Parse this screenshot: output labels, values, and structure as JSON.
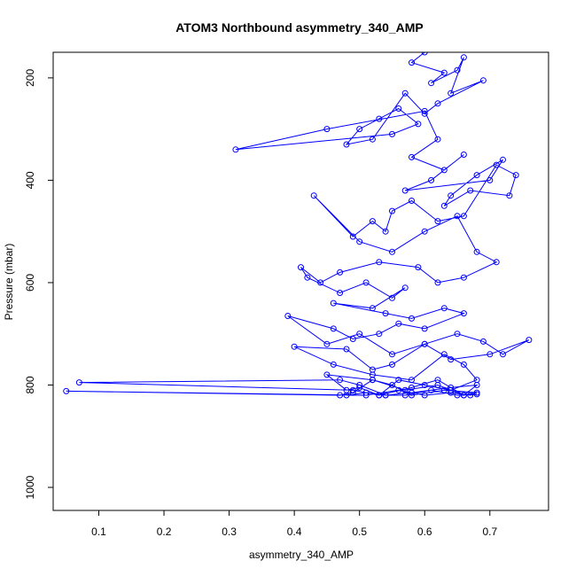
{
  "chart_data": {
    "type": "line",
    "title": "ATOM3 Northbound asymmetry_340_AMP",
    "xlabel": "asymmetry_340_AMP",
    "ylabel": "Pressure (mbar)",
    "xlim": [
      0.03,
      0.79
    ],
    "ylim": [
      1045,
      150
    ],
    "y_reversed": true,
    "x_ticks": [
      0.1,
      0.2,
      0.3,
      0.4,
      0.5,
      0.6,
      0.7
    ],
    "y_ticks": [
      200,
      400,
      600,
      800,
      1000
    ],
    "grid": false,
    "legend": "none",
    "colors": {
      "series": "#0000ff",
      "axis": "#000000"
    },
    "series": [
      {
        "markers": "open-circle",
        "x": [
          0.6,
          0.58,
          0.63,
          0.61,
          0.65,
          0.66,
          0.64,
          0.69,
          0.62,
          0.6,
          0.57,
          0.52,
          0.48,
          0.5,
          0.53,
          0.56,
          0.59,
          0.55,
          0.31,
          0.45,
          0.6,
          0.62,
          0.58,
          0.63,
          0.66,
          0.61,
          0.57,
          0.7,
          0.72,
          0.68,
          0.64,
          0.63,
          0.67,
          0.73,
          0.74,
          0.71,
          0.66,
          0.62,
          0.58,
          0.55,
          0.54,
          0.52,
          0.49,
          0.43,
          0.5,
          0.55,
          0.6,
          0.65,
          0.68,
          0.71,
          0.66,
          0.62,
          0.59,
          0.53,
          0.47,
          0.44,
          0.41,
          0.42,
          0.47,
          0.51,
          0.55,
          0.57,
          0.52,
          0.46,
          0.54,
          0.58,
          0.63,
          0.66,
          0.6,
          0.56,
          0.53,
          0.49,
          0.46,
          0.39,
          0.45,
          0.5,
          0.55,
          0.6,
          0.65,
          0.69,
          0.72,
          0.76,
          0.7,
          0.64,
          0.6,
          0.55,
          0.52,
          0.48,
          0.4,
          0.46,
          0.52,
          0.58,
          0.63,
          0.66,
          0.68,
          0.64,
          0.6,
          0.56,
          0.53,
          0.5,
          0.48,
          0.45,
          0.52,
          0.57,
          0.62,
          0.66,
          0.68,
          0.64,
          0.58,
          0.54,
          0.5,
          0.47,
          0.07,
          0.49,
          0.53,
          0.58,
          0.62,
          0.66,
          0.68,
          0.63,
          0.58,
          0.55,
          0.52,
          0.49,
          0.47,
          0.05,
          0.51,
          0.56,
          0.6,
          0.64,
          0.67,
          0.68,
          0.65,
          0.61,
          0.57,
          0.54,
          0.51,
          0.48
        ],
        "y": [
          150,
          170,
          190,
          210,
          185,
          160,
          230,
          205,
          250,
          270,
          230,
          320,
          330,
          300,
          280,
          260,
          290,
          310,
          340,
          300,
          265,
          320,
          355,
          380,
          350,
          400,
          420,
          400,
          360,
          390,
          430,
          450,
          420,
          430,
          390,
          370,
          470,
          480,
          440,
          460,
          500,
          480,
          510,
          430,
          520,
          540,
          500,
          470,
          540,
          560,
          590,
          600,
          570,
          560,
          580,
          600,
          570,
          590,
          620,
          600,
          630,
          610,
          650,
          640,
          660,
          670,
          650,
          660,
          690,
          680,
          700,
          710,
          690,
          665,
          720,
          700,
          740,
          720,
          700,
          715,
          740,
          712,
          740,
          750,
          720,
          760,
          770,
          730,
          725,
          760,
          780,
          790,
          740,
          760,
          790,
          810,
          800,
          790,
          820,
          805,
          810,
          780,
          790,
          810,
          800,
          820,
          800,
          805,
          815,
          820,
          800,
          790,
          795,
          810,
          820,
          805,
          790,
          820,
          815,
          810,
          820,
          800,
          790,
          815,
          820,
          812,
          820,
          810,
          820,
          815,
          820,
          818,
          820,
          810,
          820,
          820,
          815,
          820
        ]
      }
    ]
  }
}
